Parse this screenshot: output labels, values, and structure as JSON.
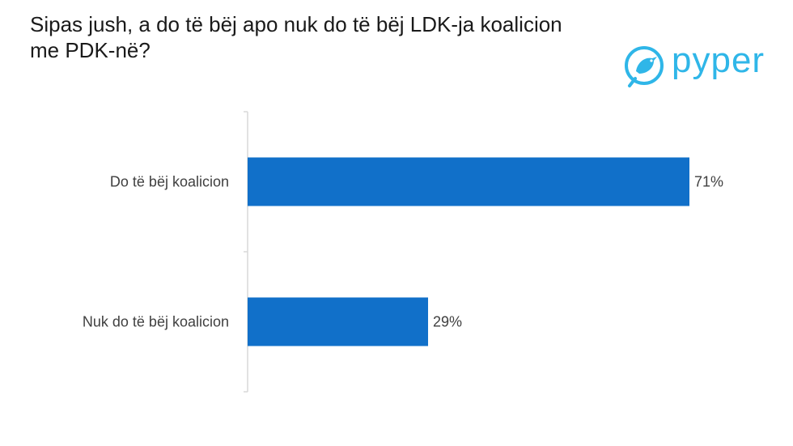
{
  "title": "Sipas jush, a do të bëj apo nuk do të bëj LDK-ja koalicion me PDK-në?",
  "logo": {
    "text": "pyper",
    "icon": "bird-icon",
    "color": "#2fb6e8"
  },
  "chart_data": {
    "type": "bar",
    "orientation": "horizontal",
    "categories": [
      "Do të bëj koalicion",
      "Nuk do të bëj koalicion"
    ],
    "values": [
      71,
      29
    ],
    "value_labels": [
      "71%",
      "29%"
    ],
    "unit": "%",
    "xlim": [
      0,
      100
    ],
    "bar_color": "#1170c9",
    "grid": false,
    "legend": "none"
  }
}
